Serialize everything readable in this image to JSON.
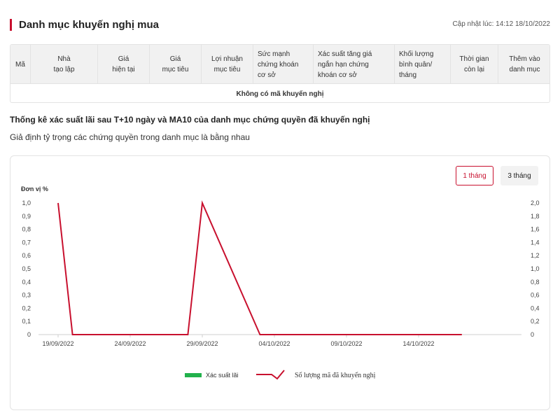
{
  "header": {
    "title": "Danh mục khuyến nghị mua",
    "updated": "Cập nhật lúc: 14:12 18/10/2022",
    "accent_color": "#c8102e"
  },
  "table": {
    "columns": [
      {
        "line1": "Mã",
        "line2": "",
        "line3": ""
      },
      {
        "line1": "Nhà",
        "line2": "tạo lập",
        "line3": ""
      },
      {
        "line1": "Giá",
        "line2": "hiện tại",
        "line3": ""
      },
      {
        "line1": "Giá",
        "line2": "mục tiêu",
        "line3": ""
      },
      {
        "line1": "Lợi nhuận",
        "line2": "mục tiêu",
        "line3": ""
      },
      {
        "line1": "Sức mạnh",
        "line2": "chứng khoán",
        "line3": "cơ sở"
      },
      {
        "line1": "Xác suất tăng giá",
        "line2": "ngắn hạn chứng",
        "line3": "khoán cơ sở"
      },
      {
        "line1": "Khối lượng",
        "line2": "bình quân/",
        "line3": "tháng"
      },
      {
        "line1": "Thời gian",
        "line2": "còn lại",
        "line3": ""
      },
      {
        "line1": "Thêm vào",
        "line2": "danh mục",
        "line3": ""
      }
    ],
    "empty_text": "Không có mã khuyến nghị"
  },
  "stats": {
    "title": "Thống kê xác suất lãi sau T+10 ngày và MA10 của danh mục chứng quyền đã khuyến nghị",
    "subtitle": "Giả định tỷ trọng các chứng quyền trong danh mục là bằng nhau"
  },
  "chart_controls": {
    "one_month": "1 tháng",
    "three_month": "3 tháng",
    "active": "1 tháng"
  },
  "chart_data": {
    "type": "line",
    "unit_label": "Đơn vị %",
    "x_labels": [
      "19/09/2022",
      "24/09/2022",
      "29/09/2022",
      "04/10/2022",
      "09/10/2022",
      "14/10/2022"
    ],
    "left_axis": {
      "ylim": [
        0,
        1.0
      ],
      "ticks": [
        "0",
        "0,1",
        "0,2",
        "0,3",
        "0,4",
        "0,5",
        "0,6",
        "0,7",
        "0,8",
        "0,9",
        "1,0"
      ]
    },
    "right_axis": {
      "ylim": [
        0,
        2.0
      ],
      "ticks": [
        "0",
        "0,2",
        "0,4",
        "0,6",
        "0,8",
        "1,0",
        "1,2",
        "1,4",
        "1,6",
        "1,8",
        "2,0"
      ]
    },
    "x_range_days": [
      0,
      29
    ],
    "series": [
      {
        "name": "Xác suất lãi",
        "color": "#22b14c",
        "axis": "left",
        "values": []
      },
      {
        "name": "Số lượng mã đã khuyến nghị",
        "color": "#c8102e",
        "axis": "right",
        "x": [
          "19/09/2022",
          "20/09/2022",
          "28/09/2022",
          "29/09/2022",
          "03/10/2022",
          "17/10/2022"
        ],
        "values": [
          2,
          0,
          0,
          2,
          0,
          0
        ]
      }
    ],
    "grid": false,
    "legend_position": "bottom-center"
  }
}
